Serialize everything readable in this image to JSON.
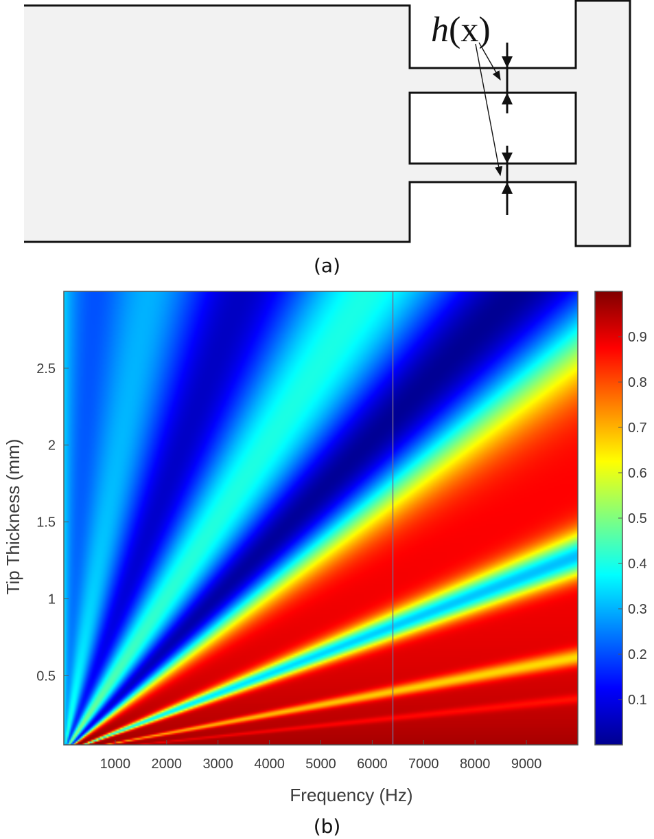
{
  "figure": {
    "panel_a_label": "(a)",
    "panel_b_label": "(b)",
    "annotation_text_h": "h",
    "annotation_text_x": "(x)"
  },
  "chart_data": {
    "type": "heatmap",
    "title": "",
    "xlabel": "Frequency (Hz)",
    "ylabel": "Tip Thickness (mm)",
    "x_range": [
      0,
      10000
    ],
    "y_range": [
      0.05,
      3.0
    ],
    "x_ticks": [
      1000,
      2000,
      3000,
      4000,
      5000,
      6000,
      7000,
      8000,
      9000
    ],
    "x_tick_labels": [
      "1000",
      "2000",
      "3000",
      "4000",
      "5000",
      "6000",
      "7000",
      "8000",
      "9000"
    ],
    "y_ticks": [
      0.5,
      1,
      1.5,
      2,
      2.5
    ],
    "y_tick_labels": [
      "0.5",
      "1",
      "1.5",
      "2",
      "2.5"
    ],
    "colorbar": {
      "range": [
        0,
        1
      ],
      "ticks": [
        0.1,
        0.2,
        0.3,
        0.4,
        0.5,
        0.6,
        0.7,
        0.8,
        0.9
      ],
      "tick_labels": [
        "0.1",
        "0.2",
        "0.3",
        "0.4",
        "0.5",
        "0.6",
        "0.7",
        "0.8",
        "0.9"
      ],
      "colormap": "jet"
    },
    "background_value": 0.87,
    "bands": [
      {
        "slope_mm_per_hz": 0.0085,
        "min_value": 0.3,
        "width": 0.04
      },
      {
        "slope_mm_per_hz": 0.00088,
        "min_value": 0.08,
        "width": 0.07
      },
      {
        "slope_mm_per_hz": 0.00034,
        "min_value": 0.02,
        "width": 0.085
      },
      {
        "slope_mm_per_hz": 0.000128,
        "min_value": 0.3,
        "width": 0.055
      },
      {
        "slope_mm_per_hz": 6.2e-05,
        "min_value": 0.62,
        "width": 0.04
      },
      {
        "slope_mm_per_hz": 3.5e-05,
        "min_value": 0.8,
        "width": 0.028
      }
    ],
    "vertical_line_x": 6400
  }
}
